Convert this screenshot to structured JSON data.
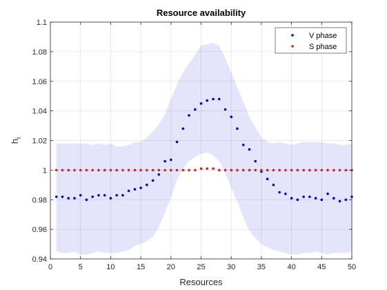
{
  "chart_data": {
    "type": "scatter",
    "title": "Resource availability",
    "xlabel": "Resources",
    "ylabel": "h",
    "ylabel_subscript": "i",
    "xlim": [
      0,
      50
    ],
    "ylim": [
      0.94,
      1.1
    ],
    "xticks": [
      0,
      5,
      10,
      15,
      20,
      25,
      30,
      35,
      40,
      45,
      50
    ],
    "yticks": [
      0.94,
      0.96,
      0.98,
      1,
      1.02,
      1.04,
      1.06,
      1.08,
      1.1
    ],
    "ytick_labels": [
      "0.94",
      "0.96",
      "0.98",
      "1",
      "1.02",
      "1.04",
      "1.06",
      "1.08",
      "1.1"
    ],
    "grid": true,
    "legend_position": "top-right",
    "x": [
      1,
      2,
      3,
      4,
      5,
      6,
      7,
      8,
      9,
      10,
      11,
      12,
      13,
      14,
      15,
      16,
      17,
      18,
      19,
      20,
      21,
      22,
      23,
      24,
      25,
      26,
      27,
      28,
      29,
      30,
      31,
      32,
      33,
      34,
      35,
      36,
      37,
      38,
      39,
      40,
      41,
      42,
      43,
      44,
      45,
      46,
      47,
      48,
      49,
      50
    ],
    "band": {
      "color": "#e4e4fb",
      "upper": [
        1.018,
        1.018,
        1.018,
        1.018,
        1.018,
        1.018,
        1.017,
        1.018,
        1.017,
        1.018,
        1.016,
        1.016,
        1.017,
        1.019,
        1.019,
        1.022,
        1.026,
        1.031,
        1.038,
        1.048,
        1.058,
        1.066,
        1.072,
        1.078,
        1.084,
        1.085,
        1.086,
        1.084,
        1.076,
        1.066,
        1.056,
        1.046,
        1.036,
        1.029,
        1.022,
        1.019,
        1.018,
        1.019,
        1.018,
        1.017,
        1.018,
        1.019,
        1.019,
        1.019,
        1.019,
        1.018,
        1.018,
        1.017,
        1.017,
        1.018
      ],
      "lower": [
        0.945,
        0.944,
        0.944,
        0.945,
        0.943,
        0.943,
        0.944,
        0.945,
        0.944,
        0.944,
        0.944,
        0.945,
        0.946,
        0.949,
        0.95,
        0.952,
        0.955,
        0.962,
        0.971,
        0.982,
        0.993,
        1.001,
        1.006,
        1.009,
        1.011,
        1.012,
        1.01,
        1.006,
        0.998,
        0.988,
        0.979,
        0.968,
        0.959,
        0.954,
        0.95,
        0.948,
        0.946,
        0.945,
        0.944,
        0.943,
        0.943,
        0.944,
        0.944,
        0.945,
        0.944,
        0.943,
        0.944,
        0.944,
        0.944,
        0.945
      ]
    },
    "series": [
      {
        "name": "V phase",
        "color": "#0000cc",
        "values": [
          0.982,
          0.982,
          0.981,
          0.981,
          0.983,
          0.98,
          0.982,
          0.983,
          0.983,
          0.981,
          0.983,
          0.983,
          0.986,
          0.987,
          0.988,
          0.99,
          0.993,
          0.997,
          1.006,
          1.007,
          1.019,
          1.028,
          1.037,
          1.041,
          1.045,
          1.047,
          1.048,
          1.048,
          1.041,
          1.036,
          1.028,
          1.017,
          1.014,
          1.006,
          0.999,
          0.994,
          0.99,
          0.985,
          0.984,
          0.981,
          0.98,
          0.982,
          0.982,
          0.981,
          0.98,
          0.984,
          0.981,
          0.979,
          0.98,
          0.982
        ]
      },
      {
        "name": "S phase",
        "color": "#e31a1c",
        "values": [
          1,
          1,
          1,
          1,
          1,
          1,
          1,
          1,
          1,
          1,
          1,
          1,
          1,
          1,
          1,
          1,
          1,
          1,
          1,
          1,
          1,
          1,
          1,
          1,
          1.001,
          1.001,
          1.001,
          1,
          1,
          1,
          1,
          1,
          1,
          1,
          1,
          1,
          1,
          1,
          1,
          1,
          1,
          1,
          1,
          1,
          1,
          1,
          1,
          1,
          1,
          1
        ]
      }
    ]
  }
}
